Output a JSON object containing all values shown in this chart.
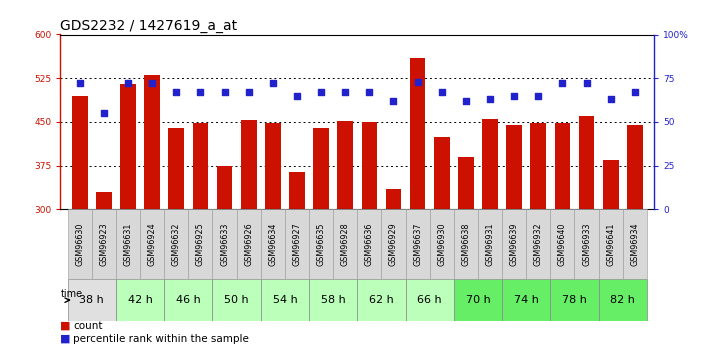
{
  "title": "GDS2232 / 1427619_a_at",
  "samples": [
    "GSM96630",
    "GSM96923",
    "GSM96631",
    "GSM96924",
    "GSM96632",
    "GSM96925",
    "GSM96633",
    "GSM96926",
    "GSM96634",
    "GSM96927",
    "GSM96635",
    "GSM96928",
    "GSM96636",
    "GSM96929",
    "GSM96637",
    "GSM96930",
    "GSM96638",
    "GSM96931",
    "GSM96639",
    "GSM96932",
    "GSM96640",
    "GSM96933",
    "GSM96641",
    "GSM96934"
  ],
  "counts": [
    495,
    330,
    515,
    530,
    440,
    449,
    375,
    454,
    449,
    365,
    440,
    452,
    450,
    335,
    560,
    425,
    390,
    455,
    445,
    449,
    449,
    460,
    385,
    445
  ],
  "percentile_ranks": [
    72,
    55,
    72,
    72,
    67,
    67,
    67,
    67,
    72,
    65,
    67,
    67,
    67,
    62,
    73,
    67,
    62,
    63,
    65,
    65,
    72,
    72,
    63,
    67
  ],
  "time_groups": [
    {
      "label": "38 h",
      "indices": [
        0,
        1
      ],
      "color": "#e0e0e0"
    },
    {
      "label": "42 h",
      "indices": [
        2,
        3
      ],
      "color": "#bbffbb"
    },
    {
      "label": "46 h",
      "indices": [
        4,
        5
      ],
      "color": "#bbffbb"
    },
    {
      "label": "50 h",
      "indices": [
        6,
        7
      ],
      "color": "#bbffbb"
    },
    {
      "label": "54 h",
      "indices": [
        8,
        9
      ],
      "color": "#bbffbb"
    },
    {
      "label": "58 h",
      "indices": [
        10,
        11
      ],
      "color": "#bbffbb"
    },
    {
      "label": "62 h",
      "indices": [
        12,
        13
      ],
      "color": "#bbffbb"
    },
    {
      "label": "66 h",
      "indices": [
        14,
        15
      ],
      "color": "#bbffbb"
    },
    {
      "label": "70 h",
      "indices": [
        16,
        17
      ],
      "color": "#66ee66"
    },
    {
      "label": "74 h",
      "indices": [
        18,
        19
      ],
      "color": "#66ee66"
    },
    {
      "label": "78 h",
      "indices": [
        20,
        21
      ],
      "color": "#66ee66"
    },
    {
      "label": "82 h",
      "indices": [
        22,
        23
      ],
      "color": "#66ee66"
    }
  ],
  "ylim_left": [
    300,
    600
  ],
  "ylim_right": [
    0,
    100
  ],
  "yticks_left": [
    300,
    375,
    450,
    525,
    600
  ],
  "yticks_right": [
    0,
    25,
    50,
    75,
    100
  ],
  "bar_color": "#cc1100",
  "dot_color": "#2222cc",
  "bar_width": 0.65,
  "bg_color": "#ffffff",
  "title_fontsize": 10,
  "tick_fontsize": 6.5,
  "sample_fontsize": 5.8,
  "time_fontsize": 8,
  "legend_fontsize": 7.5
}
